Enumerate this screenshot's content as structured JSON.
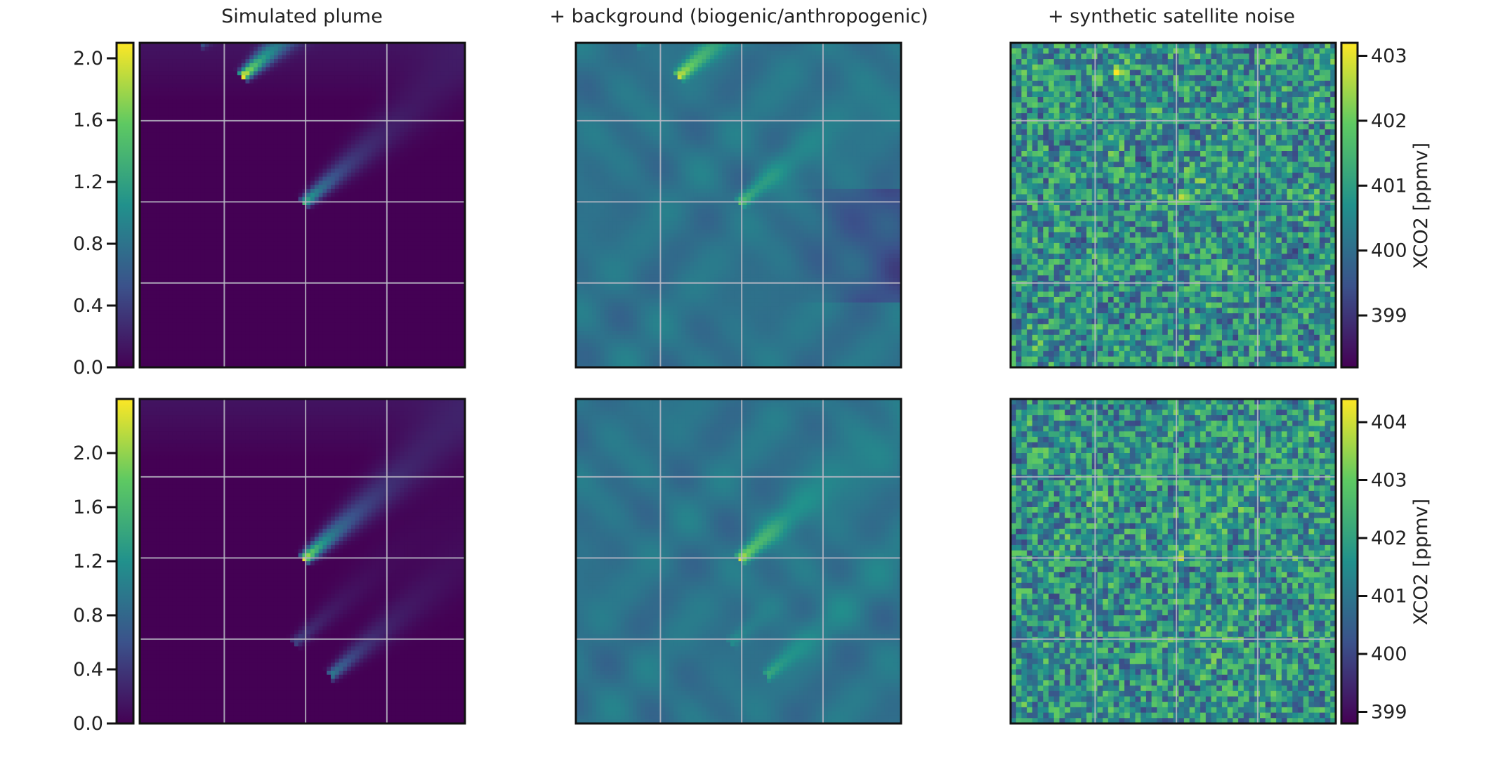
{
  "chart_data": {
    "type": "heatmap",
    "colormap": "viridis",
    "colormap_stops": [
      "#440154",
      "#3b528b",
      "#21918c",
      "#5ec962",
      "#fde725"
    ],
    "grid": true,
    "grid_color": "#b9b9c4",
    "frame_color": "#111111",
    "columns": [
      {
        "title": "Simulated plume"
      },
      {
        "title": "+ background (biogenic/anthropogenic)"
      },
      {
        "title": "+ synthetic satellite noise"
      }
    ],
    "rows": [
      {
        "plume_colorbar": {
          "position": "left",
          "range": [
            0.0,
            2.1
          ],
          "ticks": [
            0.0,
            0.4,
            0.8,
            1.2,
            1.6,
            2.0
          ],
          "tick_labels": [
            "0.0",
            "0.4",
            "0.8",
            "1.2",
            "1.6",
            "2.0"
          ]
        },
        "xco2_colorbar": {
          "position": "right",
          "range": [
            398.2,
            403.2
          ],
          "label": "XCO2 [ppmv]",
          "ticks": [
            399,
            400,
            401,
            402,
            403
          ],
          "tick_labels": [
            "399",
            "400",
            "401",
            "402",
            "403"
          ]
        },
        "sources": [
          {
            "x": 0.32,
            "y": 0.1,
            "strength": 2.0
          },
          {
            "x": 0.51,
            "y": 0.49,
            "strength": 1.3
          },
          {
            "x": 0.19,
            "y": 0.0,
            "strength": 0.5
          }
        ],
        "wind_direction": "towards upper-right"
      },
      {
        "plume_colorbar": {
          "position": "left",
          "range": [
            0.0,
            2.4
          ],
          "ticks": [
            0.0,
            0.4,
            0.8,
            1.2,
            1.6,
            2.0
          ],
          "tick_labels": [
            "0.0",
            "0.4",
            "0.8",
            "1.2",
            "1.6",
            "2.0"
          ]
        },
        "xco2_colorbar": {
          "position": "right",
          "range": [
            398.8,
            404.4
          ],
          "label": "XCO2 [ppmv]",
          "ticks": [
            399,
            400,
            401,
            402,
            403,
            404
          ],
          "tick_labels": [
            "399",
            "400",
            "401",
            "402",
            "403",
            "404"
          ]
        },
        "sources": [
          {
            "x": 0.51,
            "y": 0.49,
            "strength": 2.2
          },
          {
            "x": 0.59,
            "y": 0.85,
            "strength": 1.0
          },
          {
            "x": 0.48,
            "y": 0.75,
            "strength": 0.5
          }
        ],
        "wind_direction": "towards upper-right"
      }
    ]
  }
}
